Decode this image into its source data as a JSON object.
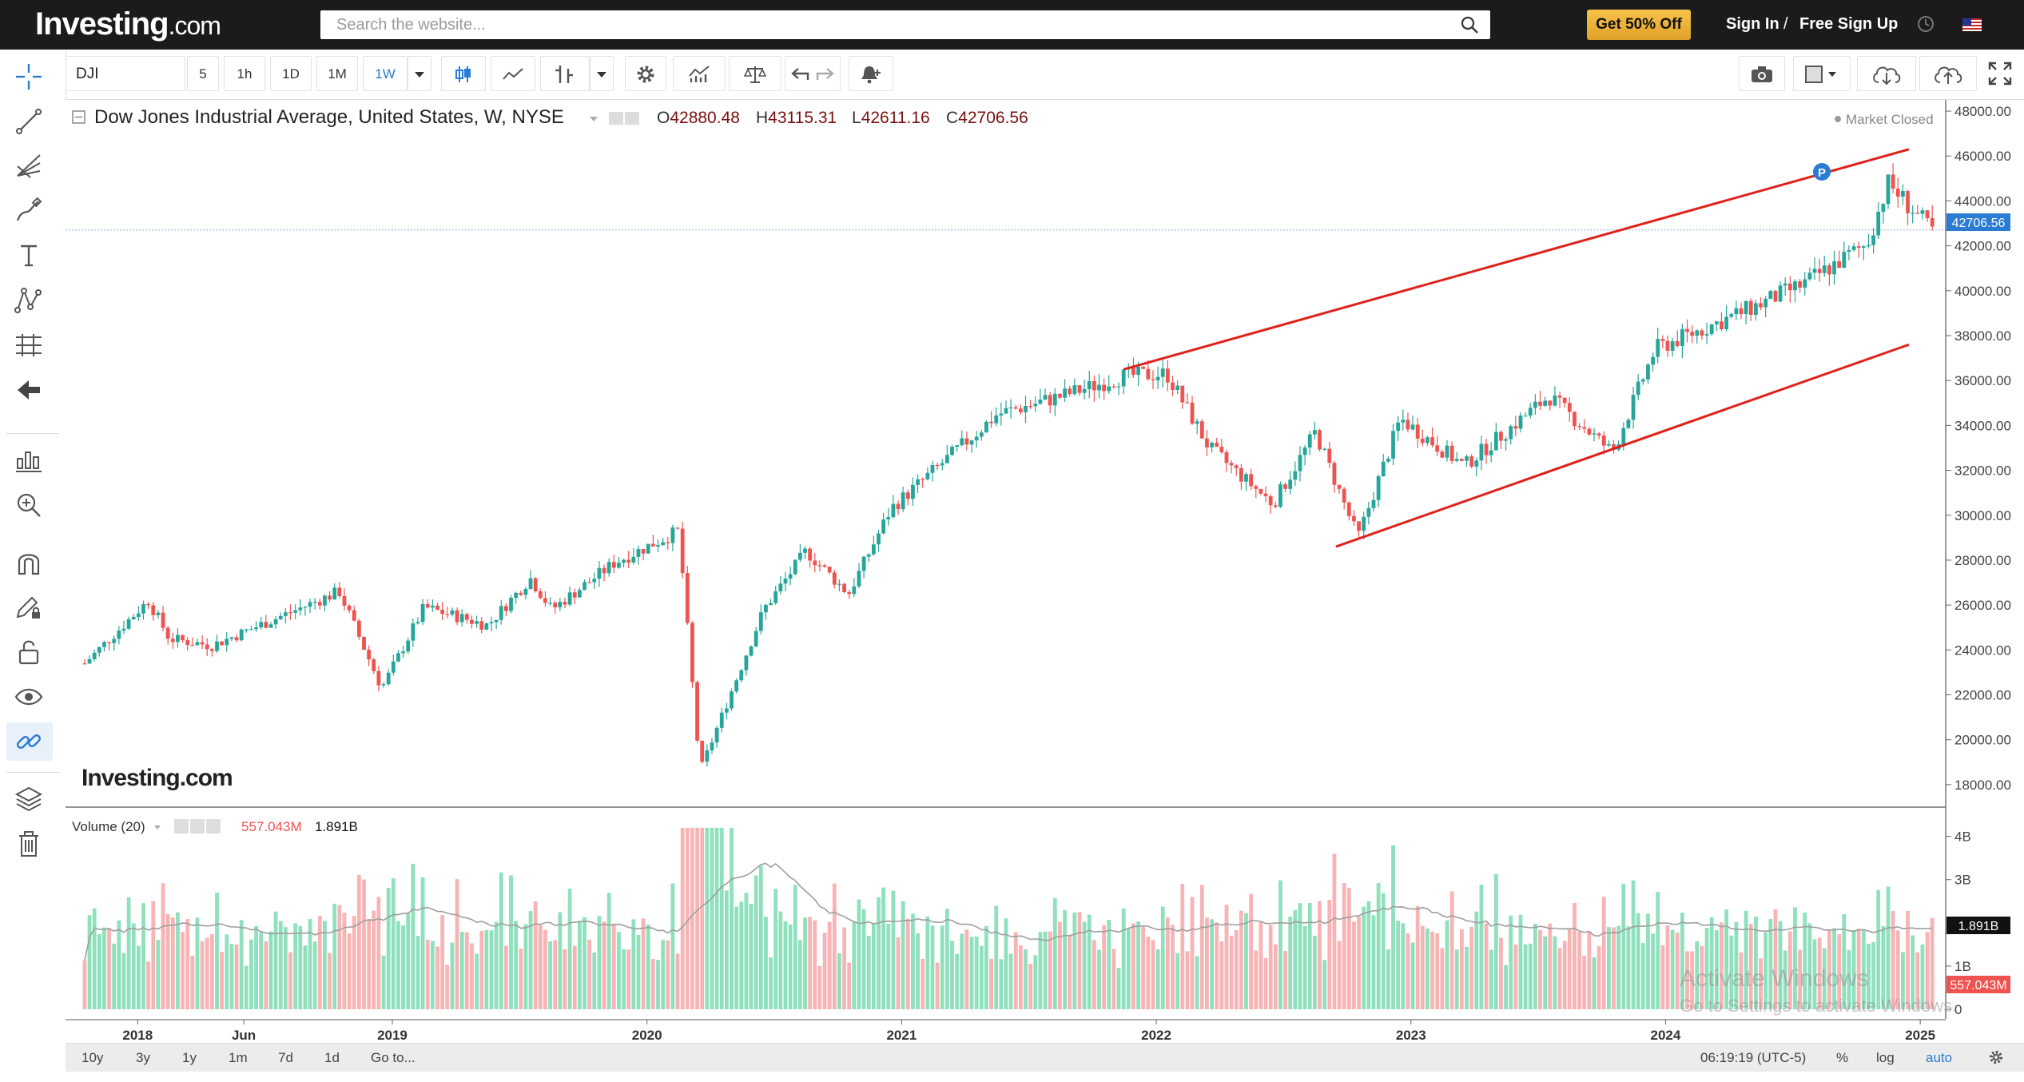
{
  "header": {
    "logo": "Investing",
    "logo_suffix": ".com",
    "search_placeholder": "Search the website...",
    "promo_label": "Get 50% Off",
    "sign_in": "Sign In",
    "separator": "/",
    "sign_up": "Free Sign Up"
  },
  "toolbar": {
    "symbol": "DJI",
    "intervals": [
      "5",
      "1h",
      "1D",
      "1M",
      "1W"
    ],
    "selected_interval": "1W"
  },
  "legend": {
    "title": "Dow Jones Industrial Average, United States, W, NYSE",
    "open_label": "O",
    "open": "42880.48",
    "high_label": "H",
    "high": "43115.31",
    "low_label": "L",
    "low": "42611.16",
    "close_label": "C",
    "close": "42706.56",
    "market_status": "Market Closed",
    "watermark": "Investing.com",
    "marker_label": "P"
  },
  "volume_legend": {
    "name": "Volume (20)",
    "value_red": "557.043M",
    "value_black": "1.891B"
  },
  "status_bar": {
    "ranges": [
      "10y",
      "3y",
      "1y",
      "1m",
      "7d",
      "1d"
    ],
    "goto": "Go to...",
    "time": "06:19:19 (UTC-5)",
    "percent": "%",
    "log": "log",
    "auto": "auto"
  },
  "overlay": {
    "activate_title": "Activate Windows",
    "activate_sub": "Go to Settings to activate Windows."
  },
  "colors": {
    "up": "#26a69a",
    "down": "#ef5350",
    "trendline": "#e0201a",
    "price_tag": "#2a7bd3",
    "volume_tag_red": "#ef5350",
    "volume_tag_black": "#111111",
    "vol_up": "#8fe0bd",
    "vol_down": "#f8b4b4"
  },
  "chart_data": {
    "type": "candlestick",
    "symbol": "DJI",
    "interval": "W",
    "x_range": [
      "2017-10",
      "2025-01"
    ],
    "x_ticks": [
      "2018",
      "Jun",
      "2019",
      "2020",
      "2021",
      "2022",
      "2023",
      "2024",
      "2025"
    ],
    "y_range": [
      17000,
      48500
    ],
    "y_ticks": [
      "48000.00",
      "46000.00",
      "44000.00",
      "42000.00",
      "40000.00",
      "38000.00",
      "36000.00",
      "34000.00",
      "32000.00",
      "30000.00",
      "28000.00",
      "26000.00",
      "24000.00",
      "22000.00",
      "20000.00",
      "18000.00"
    ],
    "last_price": "42706.56",
    "series_path": [
      {
        "date": "2017-10",
        "price": 23400
      },
      {
        "date": "2018-01",
        "price": 26200
      },
      {
        "date": "2018-02",
        "price": 24500
      },
      {
        "date": "2018-04",
        "price": 24200
      },
      {
        "date": "2018-07",
        "price": 25400
      },
      {
        "date": "2018-10",
        "price": 26600
      },
      {
        "date": "2018-12",
        "price": 22300
      },
      {
        "date": "2019-02",
        "price": 25900
      },
      {
        "date": "2019-05",
        "price": 25100
      },
      {
        "date": "2019-07",
        "price": 27200
      },
      {
        "date": "2019-08",
        "price": 25800
      },
      {
        "date": "2019-11",
        "price": 27900
      },
      {
        "date": "2020-02",
        "price": 29300
      },
      {
        "date": "2020-03",
        "price": 18600
      },
      {
        "date": "2020-06",
        "price": 25800
      },
      {
        "date": "2020-08",
        "price": 28400
      },
      {
        "date": "2020-10",
        "price": 26500
      },
      {
        "date": "2020-12",
        "price": 30300
      },
      {
        "date": "2021-05",
        "price": 34500
      },
      {
        "date": "2021-08",
        "price": 35300
      },
      {
        "date": "2021-11",
        "price": 36200
      },
      {
        "date": "2022-01",
        "price": 36300
      },
      {
        "date": "2022-03",
        "price": 33000
      },
      {
        "date": "2022-06",
        "price": 30500
      },
      {
        "date": "2022-08",
        "price": 33700
      },
      {
        "date": "2022-10",
        "price": 29000
      },
      {
        "date": "2022-12",
        "price": 34300
      },
      {
        "date": "2023-03",
        "price": 32200
      },
      {
        "date": "2023-07",
        "price": 35300
      },
      {
        "date": "2023-10",
        "price": 32800
      },
      {
        "date": "2023-12",
        "price": 37400
      },
      {
        "date": "2024-04",
        "price": 39000
      },
      {
        "date": "2024-07",
        "price": 40300
      },
      {
        "date": "2024-10",
        "price": 42100
      },
      {
        "date": "2024-11",
        "price": 44800
      },
      {
        "date": "2025-01",
        "price": 42700
      }
    ],
    "trendlines": [
      {
        "from": {
          "date": "2021-11",
          "price": 36500
        },
        "to": {
          "date": "2024-12",
          "price": 46300
        }
      },
      {
        "from": {
          "date": "2022-09",
          "price": 28600
        },
        "to": {
          "date": "2024-12",
          "price": 37600
        }
      }
    ],
    "volume": {
      "y_ticks": [
        "4B",
        "3B",
        "1B",
        "0"
      ],
      "y_range": [
        0,
        4400000000
      ],
      "ma_period": 20,
      "last_volume": "557.043M",
      "last_ma": "1.891B"
    }
  }
}
